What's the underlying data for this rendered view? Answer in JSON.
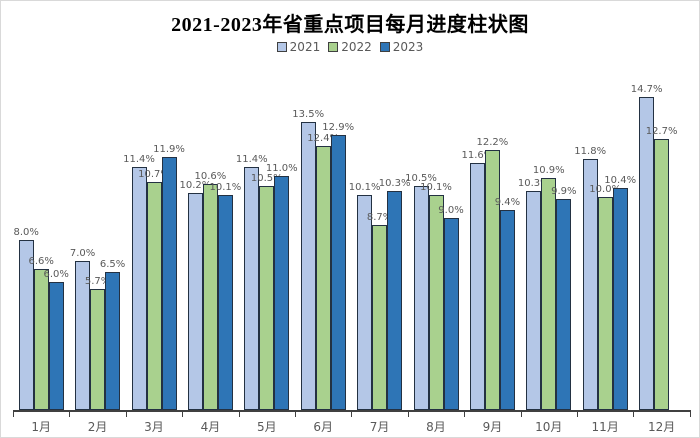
{
  "page": {
    "background": "#ffffff",
    "border_color": "#d9d9d9"
  },
  "chart_data": {
    "type": "bar",
    "title": "2021-2023年省重点项目每月进度柱状图",
    "categories": [
      "1月",
      "2月",
      "3月",
      "4月",
      "5月",
      "6月",
      "7月",
      "8月",
      "9月",
      "10月",
      "11月",
      "12月"
    ],
    "series": [
      {
        "name": "2021",
        "color": "#B4C7E7",
        "values": [
          8.0,
          7.0,
          11.4,
          10.2,
          11.4,
          13.5,
          10.1,
          10.5,
          11.6,
          10.3,
          11.8,
          14.7
        ]
      },
      {
        "name": "2022",
        "color": "#A9D18E",
        "values": [
          6.6,
          5.7,
          10.7,
          10.6,
          10.5,
          12.4,
          8.7,
          10.1,
          12.2,
          10.9,
          10.0,
          12.7
        ]
      },
      {
        "name": "2023",
        "color": "#2E75B6",
        "values": [
          6.0,
          6.5,
          11.9,
          10.1,
          11.0,
          12.9,
          10.3,
          9.0,
          9.4,
          9.9,
          10.4,
          null
        ]
      }
    ],
    "value_format": "percent_one_decimal",
    "data_labels_shown": true,
    "ylim": [
      0,
      15.5
    ],
    "grid": false,
    "y_axis_shown": false,
    "legend_position": "top",
    "bar_border_color": "#233142",
    "axis_color": "#404040",
    "text_color": "#595959"
  }
}
